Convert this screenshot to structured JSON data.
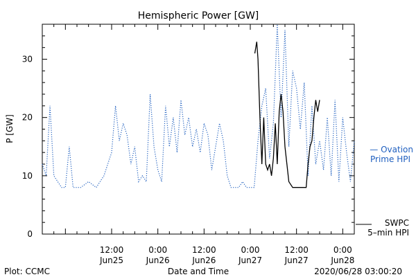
{
  "chart_data": {
    "type": "line",
    "title": "Hemispheric Power [GW]",
    "xlabel": "Date and Time",
    "ylabel": "P [GW]",
    "ylim": [
      0,
      36
    ],
    "xlim": [
      "2020-06-24 18:00",
      "2020-06-28 03:00"
    ],
    "y_ticks": [
      0,
      10,
      20,
      30
    ],
    "x_ticks": [
      {
        "t": "2020-06-25 12:00",
        "time": "12:00",
        "date": "Jun25"
      },
      {
        "t": "2020-06-26 00:00",
        "time": "0:00",
        "date": "Jun26"
      },
      {
        "t": "2020-06-26 12:00",
        "time": "12:00",
        "date": "Jun26"
      },
      {
        "t": "2020-06-27 00:00",
        "time": "0:00",
        "date": "Jun27"
      },
      {
        "t": "2020-06-27 12:00",
        "time": "12:00",
        "date": "Jun27"
      },
      {
        "t": "2020-06-28 00:00",
        "time": "0:00",
        "date": "Jun28"
      }
    ],
    "grid": false,
    "series": [
      {
        "name": "Ovation Prime HPI",
        "legend_lines": [
          "— Ovation",
          "Prime HPI"
        ],
        "style": "dotted",
        "color": "#1f5fbf",
        "points": [
          [
            "2020-06-24 18:00",
            12
          ],
          [
            "2020-06-24 19:00",
            10
          ],
          [
            "2020-06-24 20:00",
            22
          ],
          [
            "2020-06-24 21:00",
            10
          ],
          [
            "2020-06-24 22:00",
            9
          ],
          [
            "2020-06-24 23:00",
            8
          ],
          [
            "2020-06-25 00:00",
            8
          ],
          [
            "2020-06-25 01:00",
            15
          ],
          [
            "2020-06-25 02:00",
            8
          ],
          [
            "2020-06-25 04:00",
            8
          ],
          [
            "2020-06-25 06:00",
            9
          ],
          [
            "2020-06-25 08:00",
            8
          ],
          [
            "2020-06-25 10:00",
            10
          ],
          [
            "2020-06-25 11:00",
            12
          ],
          [
            "2020-06-25 12:00",
            14
          ],
          [
            "2020-06-25 13:00",
            22
          ],
          [
            "2020-06-25 14:00",
            16
          ],
          [
            "2020-06-25 15:00",
            19
          ],
          [
            "2020-06-25 16:00",
            17
          ],
          [
            "2020-06-25 17:00",
            12
          ],
          [
            "2020-06-25 18:00",
            15
          ],
          [
            "2020-06-25 19:00",
            9
          ],
          [
            "2020-06-25 20:00",
            10
          ],
          [
            "2020-06-25 21:00",
            9
          ],
          [
            "2020-06-25 22:00",
            24
          ],
          [
            "2020-06-25 23:00",
            15
          ],
          [
            "2020-06-26 00:00",
            11
          ],
          [
            "2020-06-26 01:00",
            9
          ],
          [
            "2020-06-26 02:00",
            22
          ],
          [
            "2020-06-26 03:00",
            15
          ],
          [
            "2020-06-26 04:00",
            20
          ],
          [
            "2020-06-26 05:00",
            14
          ],
          [
            "2020-06-26 06:00",
            23
          ],
          [
            "2020-06-26 07:00",
            17
          ],
          [
            "2020-06-26 08:00",
            20
          ],
          [
            "2020-06-26 09:00",
            15
          ],
          [
            "2020-06-26 10:00",
            18
          ],
          [
            "2020-06-26 11:00",
            14
          ],
          [
            "2020-06-26 12:00",
            19
          ],
          [
            "2020-06-26 13:00",
            17
          ],
          [
            "2020-06-26 14:00",
            11
          ],
          [
            "2020-06-26 15:00",
            15
          ],
          [
            "2020-06-26 16:00",
            19
          ],
          [
            "2020-06-26 17:00",
            16
          ],
          [
            "2020-06-26 18:00",
            10
          ],
          [
            "2020-06-26 19:00",
            8
          ],
          [
            "2020-06-26 21:00",
            8
          ],
          [
            "2020-06-26 22:00",
            9
          ],
          [
            "2020-06-26 23:00",
            8
          ],
          [
            "2020-06-27 00:00",
            8
          ],
          [
            "2020-06-27 01:00",
            8
          ],
          [
            "2020-06-27 02:00",
            16
          ],
          [
            "2020-06-27 03:00",
            22
          ],
          [
            "2020-06-27 04:00",
            25
          ],
          [
            "2020-06-27 05:00",
            13
          ],
          [
            "2020-06-27 06:00",
            19
          ],
          [
            "2020-06-27 07:00",
            36
          ],
          [
            "2020-06-27 08:00",
            20
          ],
          [
            "2020-06-27 09:00",
            35
          ],
          [
            "2020-06-27 10:00",
            15
          ],
          [
            "2020-06-27 11:00",
            28
          ],
          [
            "2020-06-27 12:00",
            25
          ],
          [
            "2020-06-27 13:00",
            18
          ],
          [
            "2020-06-27 14:00",
            26
          ],
          [
            "2020-06-27 15:00",
            10
          ],
          [
            "2020-06-27 16:00",
            22
          ],
          [
            "2020-06-27 17:00",
            12
          ],
          [
            "2020-06-27 18:00",
            16
          ],
          [
            "2020-06-27 19:00",
            11
          ],
          [
            "2020-06-27 20:00",
            20
          ],
          [
            "2020-06-27 21:00",
            10
          ],
          [
            "2020-06-27 22:00",
            23
          ],
          [
            "2020-06-27 23:00",
            9
          ],
          [
            "2020-06-28 00:00",
            20
          ],
          [
            "2020-06-28 01:00",
            14
          ],
          [
            "2020-06-28 02:00",
            9
          ],
          [
            "2020-06-28 03:00",
            16
          ]
        ]
      },
      {
        "name": "SWPC 5-min HPI",
        "legend_lines": [
          "SWPC",
          "5–min HPI"
        ],
        "style": "solid",
        "color": "#000000",
        "points": [
          [
            "2020-06-27 01:10",
            31
          ],
          [
            "2020-06-27 01:40",
            33
          ],
          [
            "2020-06-27 02:00",
            30
          ],
          [
            "2020-06-27 02:30",
            20
          ],
          [
            "2020-06-27 03:00",
            12
          ],
          [
            "2020-06-27 03:30",
            20
          ],
          [
            "2020-06-27 04:00",
            12
          ],
          [
            "2020-06-27 04:30",
            11
          ],
          [
            "2020-06-27 05:00",
            12
          ],
          [
            "2020-06-27 05:30",
            10
          ],
          [
            "2020-06-27 06:00",
            13
          ],
          [
            "2020-06-27 06:30",
            19
          ],
          [
            "2020-06-27 07:00",
            12
          ],
          [
            "2020-06-27 07:30",
            21
          ],
          [
            "2020-06-27 08:00",
            24
          ],
          [
            "2020-06-27 08:30",
            21
          ],
          [
            "2020-06-27 09:00",
            15
          ],
          [
            "2020-06-27 09:30",
            12
          ],
          [
            "2020-06-27 10:00",
            9
          ],
          [
            "2020-06-27 11:00",
            8
          ],
          [
            "2020-06-27 14:00",
            8
          ],
          [
            "2020-06-27 14:30",
            8
          ],
          [
            "2020-06-27 15:00",
            12
          ],
          [
            "2020-06-27 15:30",
            15
          ],
          [
            "2020-06-27 16:00",
            16
          ],
          [
            "2020-06-27 16:30",
            20
          ],
          [
            "2020-06-27 17:00",
            23
          ],
          [
            "2020-06-27 17:30",
            21
          ],
          [
            "2020-06-27 18:00",
            23
          ]
        ]
      }
    ]
  },
  "footer": {
    "left": "Plot: CCMC",
    "center": "Date and Time",
    "right": "2020/06/28 03:00:20"
  }
}
